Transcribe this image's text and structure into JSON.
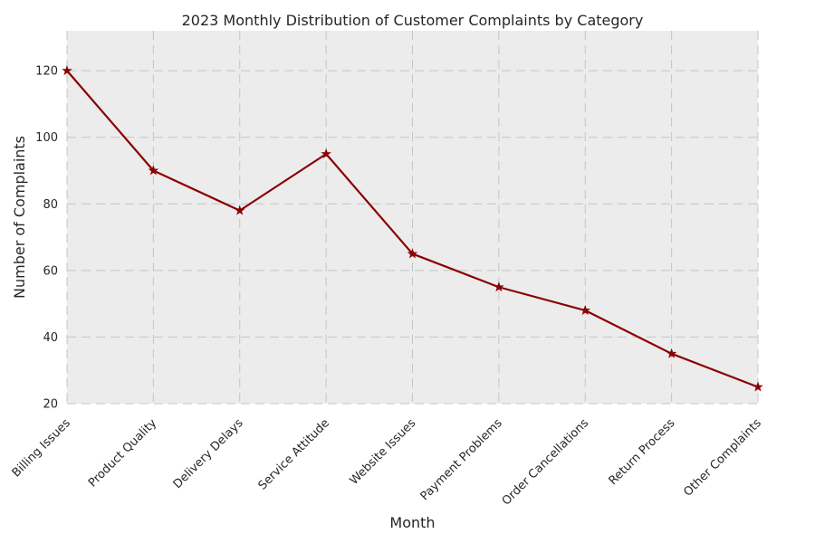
{
  "chart_data": {
    "type": "line",
    "title": "2023 Monthly Distribution of Customer Complaints by Category",
    "xlabel": "Month",
    "ylabel": "Number of Complaints",
    "categories": [
      "Billing Issues",
      "Product Quality",
      "Delivery Delays",
      "Service Attitude",
      "Website Issues",
      "Payment Problems",
      "Order Cancellations",
      "Return Process",
      "Other Complaints"
    ],
    "series": [
      {
        "values": [
          120,
          90,
          78,
          95,
          65,
          55,
          48,
          35,
          25
        ],
        "color": "#8b0000",
        "marker": "star"
      }
    ],
    "ylim": [
      20,
      132
    ],
    "yticks": [
      20,
      40,
      60,
      80,
      100,
      120
    ],
    "grid": true,
    "plot_background": "#ececec"
  }
}
